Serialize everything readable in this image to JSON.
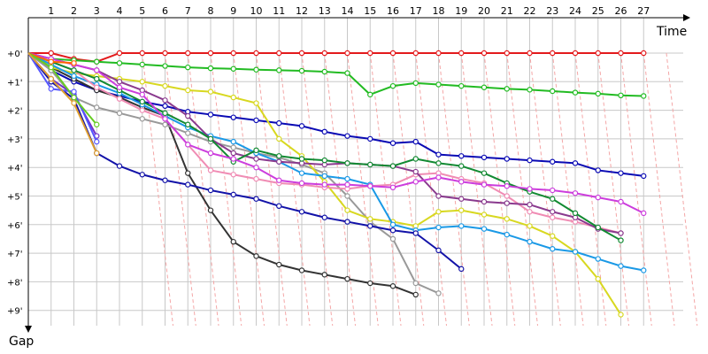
{
  "chart_data": {
    "type": "line",
    "title": "",
    "xlabel": "Time",
    "ylabel": "Gap",
    "xlim": [
      0,
      28
    ],
    "ylim": [
      0,
      9
    ],
    "x_ticks": [
      1,
      2,
      3,
      4,
      5,
      6,
      7,
      8,
      9,
      10,
      11,
      12,
      13,
      14,
      15,
      16,
      17,
      18,
      19,
      20,
      21,
      22,
      23,
      24,
      25,
      26,
      27
    ],
    "y_ticks": [
      "+0'",
      "+1'",
      "+2'",
      "+3'",
      "+4'",
      "+5'",
      "+6'",
      "+7'",
      "+8'",
      "+9'"
    ],
    "grid": true,
    "colors": {
      "grid": "#c8c8c8",
      "diag": "#f4a6a6",
      "axis": "#000000"
    },
    "series": [
      {
        "color": "#e31a1c",
        "values": [
          0,
          0,
          0.2,
          0.3,
          0,
          0,
          0,
          0,
          0,
          0,
          0,
          0,
          0,
          0,
          0,
          0,
          0,
          0,
          0,
          0,
          0,
          0,
          0,
          0,
          0,
          0,
          0,
          0
        ]
      },
      {
        "color": "#22bb22",
        "values": [
          0,
          0.2,
          0.25,
          0.3,
          0.35,
          0.4,
          0.45,
          0.5,
          0.53,
          0.55,
          0.58,
          0.6,
          0.62,
          0.65,
          0.7,
          1.45,
          1.15,
          1.05,
          1.1,
          1.15,
          1.2,
          1.25,
          1.28,
          1.33,
          1.38,
          1.42,
          1.48,
          1.5
        ]
      },
      {
        "color": "#0a0ab4",
        "values": [
          0,
          0.6,
          1.0,
          1.3,
          1.5,
          1.7,
          1.85,
          2.05,
          2.15,
          2.25,
          2.35,
          2.45,
          2.55,
          2.75,
          2.9,
          3.0,
          3.15,
          3.1,
          3.55,
          3.6,
          3.65,
          3.7,
          3.75,
          3.8,
          3.85,
          4.1,
          4.2,
          4.3
        ]
      },
      {
        "color": "#333333",
        "values": [
          0,
          0.5,
          0.9,
          1.3,
          1.55,
          1.9,
          2.2,
          4.2,
          5.5,
          6.6,
          7.1,
          7.4,
          7.6,
          7.75,
          7.9,
          8.05,
          8.15,
          8.45
        ]
      },
      {
        "color": "#999999",
        "values": [
          0,
          0.6,
          1.55,
          1.9,
          2.1,
          2.3,
          2.5,
          2.8,
          3.1,
          3.3,
          3.5,
          3.65,
          3.9,
          4.2,
          5.0,
          5.9,
          6.5,
          8.05,
          8.4
        ]
      },
      {
        "color": "#d8d820",
        "values": [
          0,
          0.5,
          0.7,
          0.8,
          0.9,
          1.0,
          1.15,
          1.3,
          1.35,
          1.55,
          1.75,
          3.0,
          3.6,
          4.5,
          5.5,
          5.8,
          5.9,
          6.05,
          5.55,
          5.5,
          5.65,
          5.8,
          6.05,
          6.4,
          6.95,
          7.9,
          9.15
        ]
      },
      {
        "color": "#1a99e6",
        "values": [
          0,
          0.4,
          0.8,
          1.1,
          1.4,
          1.8,
          2.2,
          2.6,
          2.9,
          3.1,
          3.5,
          3.8,
          4.2,
          4.3,
          4.4,
          4.6,
          6.0,
          6.2,
          6.1,
          6.05,
          6.15,
          6.35,
          6.6,
          6.85,
          6.95,
          7.2,
          7.45,
          7.6
        ]
      },
      {
        "color": "#f08cb4",
        "values": [
          0,
          0.3,
          0.6,
          1.2,
          1.6,
          2.0,
          2.3,
          3.2,
          4.1,
          4.25,
          4.4,
          4.55,
          4.6,
          4.7,
          4.75,
          4.65,
          4.6,
          4.25,
          4.2,
          4.4,
          4.55,
          5.0,
          5.55,
          5.75,
          5.9,
          6.1,
          6.3
        ]
      },
      {
        "color": "#8a3a8e",
        "values": [
          0,
          0.2,
          0.4,
          0.6,
          1.0,
          1.3,
          1.65,
          2.2,
          3.0,
          3.5,
          3.7,
          3.8,
          3.85,
          3.9,
          3.85,
          3.9,
          3.95,
          4.15,
          5.0,
          5.1,
          5.2,
          5.25,
          5.3,
          5.55,
          5.75,
          6.15,
          6.3
        ]
      },
      {
        "color": "#128a32",
        "values": [
          0,
          0.3,
          0.6,
          0.9,
          1.3,
          1.7,
          2.1,
          2.5,
          3.0,
          3.8,
          3.4,
          3.6,
          3.7,
          3.75,
          3.85,
          3.9,
          3.95,
          3.7,
          3.85,
          3.95,
          4.2,
          4.55,
          4.85,
          5.1,
          5.6,
          6.1,
          6.55
        ]
      },
      {
        "color": "#cc3ddd",
        "values": [
          0,
          0.2,
          0.4,
          0.6,
          1.2,
          1.45,
          2.3,
          3.2,
          3.5,
          3.7,
          4.0,
          4.45,
          4.55,
          4.6,
          4.6,
          4.65,
          4.7,
          4.5,
          4.35,
          4.5,
          4.6,
          4.65,
          4.75,
          4.8,
          4.9,
          5.05,
          5.2,
          5.6
        ]
      },
      {
        "color": "#1212a8",
        "values": [
          0,
          1.0,
          1.6,
          3.5,
          3.95,
          4.25,
          4.45,
          4.6,
          4.8,
          4.95,
          5.1,
          5.35,
          5.55,
          5.75,
          5.9,
          6.05,
          6.2,
          6.3,
          6.9,
          7.55
        ]
      },
      {
        "color": "#7030c8",
        "values": [
          0,
          0.9,
          1.45,
          2.9
        ]
      },
      {
        "color": "#5555ff",
        "values": [
          0,
          1.25,
          1.35,
          3.1
        ]
      },
      {
        "color": "#ff6600",
        "values": [
          0,
          0.3,
          0.35
        ]
      },
      {
        "color": "#66cc22",
        "values": [
          0,
          0.5,
          1.55,
          2.5
        ]
      },
      {
        "color": "#e0a030",
        "values": [
          0,
          0.9,
          1.75,
          3.5
        ]
      }
    ]
  }
}
